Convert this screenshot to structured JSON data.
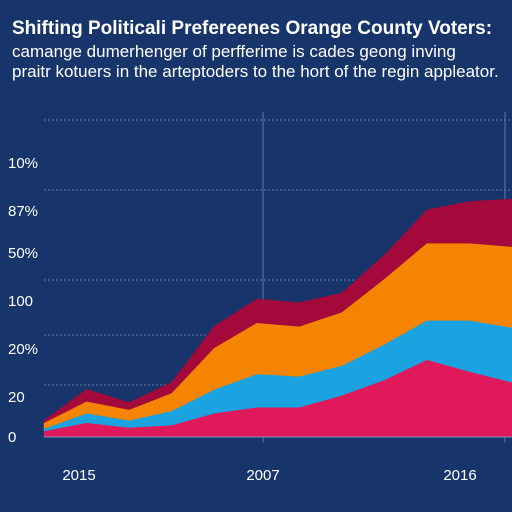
{
  "chart_data": {
    "type": "area",
    "stacked": true,
    "title": "Shifting Politicali Prefereenes Orange County Voters:",
    "subtitle_lines": [
      "camange dumerhenger of perfferime is cades geong inving",
      "praitr kotuers in the arteptoders to the hort of the regin appleator."
    ],
    "y_tick_labels": [
      "10%",
      "87%",
      "50%",
      "100",
      "20%",
      "20",
      "0"
    ],
    "x_tick_labels": [
      "2015",
      "2007",
      "2016"
    ],
    "grid": true,
    "legend": "none",
    "x": [
      0,
      1,
      2,
      3,
      4,
      5,
      6,
      7,
      8,
      9,
      10,
      11
    ],
    "series": [
      {
        "color": "#e0195a",
        "values": [
          5,
          12,
          8,
          10,
          20,
          25,
          25,
          35,
          48,
          65,
          55,
          46
        ]
      },
      {
        "color": "#1aa3e0",
        "values": [
          2,
          8,
          6,
          12,
          20,
          28,
          26,
          25,
          30,
          33,
          43,
          46
        ]
      },
      {
        "color": "#f58400",
        "values": [
          5,
          10,
          9,
          15,
          35,
          43,
          42,
          45,
          55,
          65,
          65,
          68
        ]
      },
      {
        "color": "#a3093a",
        "values": [
          2,
          10,
          6,
          9,
          18,
          20,
          20,
          16,
          20,
          28,
          35,
          40
        ]
      }
    ],
    "ylim": [
      0,
      290
    ]
  }
}
